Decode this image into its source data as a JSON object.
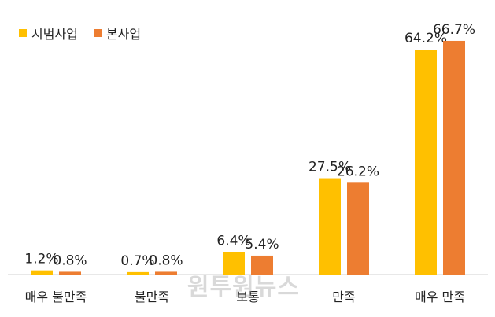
{
  "chart_data": {
    "type": "bar",
    "categories": [
      "매우 불만족",
      "불만족",
      "보통",
      "만족",
      "매우 만족"
    ],
    "series": [
      {
        "name": "시범사업",
        "color": "#FFC000",
        "values": [
          1.2,
          0.7,
          6.4,
          27.5,
          64.2
        ],
        "labels": [
          "1.2%",
          "0.7%",
          "6.4%",
          "27.5%",
          "64.2%"
        ]
      },
      {
        "name": "본사업",
        "color": "#ED7D31",
        "values": [
          0.8,
          0.8,
          5.4,
          26.2,
          66.7
        ],
        "labels": [
          "0.8%",
          "0.8%",
          "5.4%",
          "26.2%",
          "66.7%"
        ]
      }
    ],
    "ylim": [
      0,
      75
    ],
    "legend_position": "top-left",
    "grid": false
  },
  "watermark": "원투원뉴스"
}
